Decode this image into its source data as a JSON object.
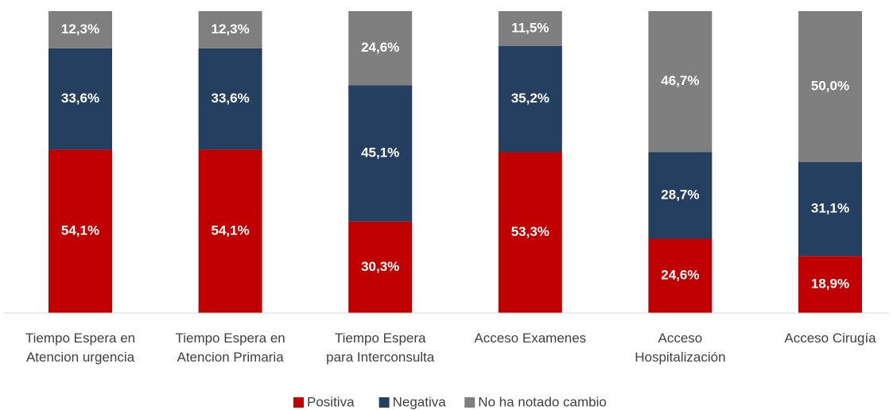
{
  "chart_data": {
    "type": "stacked_bar",
    "categories": [
      "Tiempo Espera en\nAtencion urgencia",
      "Tiempo Espera en\nAtencion Primaria",
      "Tiempo Espera\npara Interconsulta",
      "Acceso Examenes",
      "Acceso\nHospitalización",
      "Acceso Cirugía"
    ],
    "series": [
      {
        "name": "Positiva",
        "color": "#c00000",
        "values": [
          54.1,
          54.1,
          30.3,
          53.3,
          24.6,
          18.9
        ],
        "value_labels": [
          "54,1%",
          "54,1%",
          "30,3%",
          "53,3%",
          "24,6%",
          "18,9%"
        ]
      },
      {
        "name": "Negativa",
        "color": "#243f60",
        "values": [
          33.6,
          33.6,
          45.1,
          35.2,
          28.7,
          31.1
        ],
        "value_labels": [
          "33,6%",
          "33,6%",
          "45,1%",
          "35,2%",
          "28,7%",
          "31,1%"
        ]
      },
      {
        "name": "No ha notado cambio",
        "color": "#7f7f7f",
        "values": [
          12.3,
          12.3,
          24.6,
          11.5,
          46.7,
          50.0
        ],
        "value_labels": [
          "12,3%",
          "12,3%",
          "24,6%",
          "11,5%",
          "46,7%",
          "50,0%"
        ]
      }
    ],
    "ylim": [
      0,
      100
    ],
    "legend": "bottom"
  }
}
